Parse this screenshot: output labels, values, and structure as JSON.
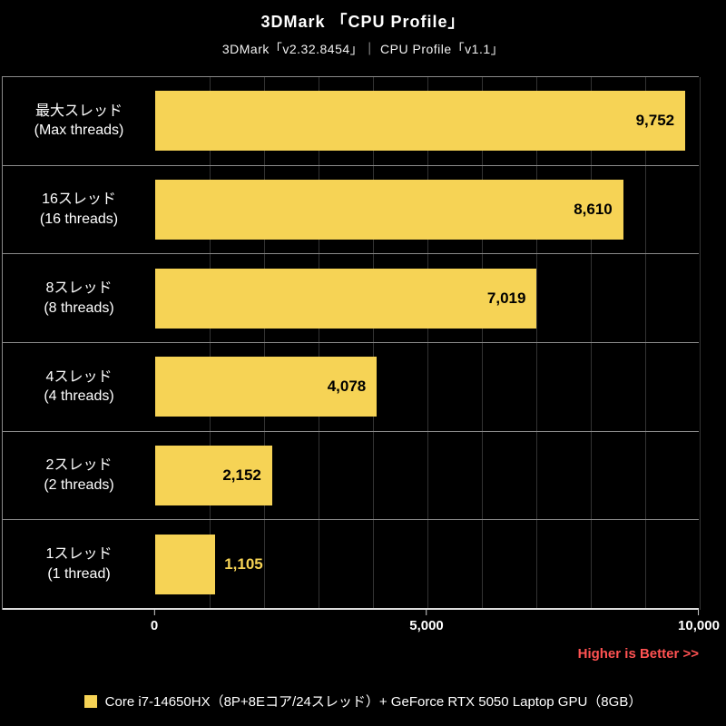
{
  "chart_data": {
    "type": "bar",
    "orientation": "horizontal",
    "title": "3DMark 「CPU Profile」",
    "subtitle": "3DMark「v2.32.8454」｜ CPU Profile「v1.1」",
    "categories": [
      "最大スレッド (Max threads)",
      "16スレッド (16 threads)",
      "8スレッド (8 threads)",
      "4スレッド (4 threads)",
      "2スレッド (2 threads)",
      "1スレッド (1 thread)"
    ],
    "categories_jp": [
      "最大スレッド",
      "16スレッド",
      "8スレッド",
      "4スレッド",
      "2スレッド",
      "1スレッド"
    ],
    "categories_en": [
      "(Max threads)",
      "(16 threads)",
      "(8 threads)",
      "(4 threads)",
      "(2 threads)",
      "(1 thread)"
    ],
    "series": [
      {
        "name": "Core i7-14650HX（8P+8Eコア/24スレッド）+ GeForce RTX 5050 Laptop GPU（8GB）",
        "values": [
          9752,
          8610,
          7019,
          4078,
          2152,
          1105
        ]
      }
    ],
    "value_labels": [
      "9,752",
      "8,610",
      "7,019",
      "4,078",
      "2,152",
      "1,105"
    ],
    "label_placement": [
      "inside",
      "inside",
      "inside",
      "inside",
      "inside",
      "outside"
    ],
    "xlim": [
      0,
      10000
    ],
    "xticks": [
      0,
      5000,
      10000
    ],
    "xtick_labels": [
      "0",
      "5,000",
      "10,000"
    ],
    "gridline_step": 1000,
    "grid": true,
    "legend_position": "bottom",
    "bar_color": "#F6D355",
    "grid_color": "#333333",
    "separator_color": "#8A8A8A",
    "axis_color": "#DCDCDC",
    "background_color": "#000000"
  },
  "footer": {
    "note": "Higher is Better >>",
    "note_color": "#FF5252"
  }
}
